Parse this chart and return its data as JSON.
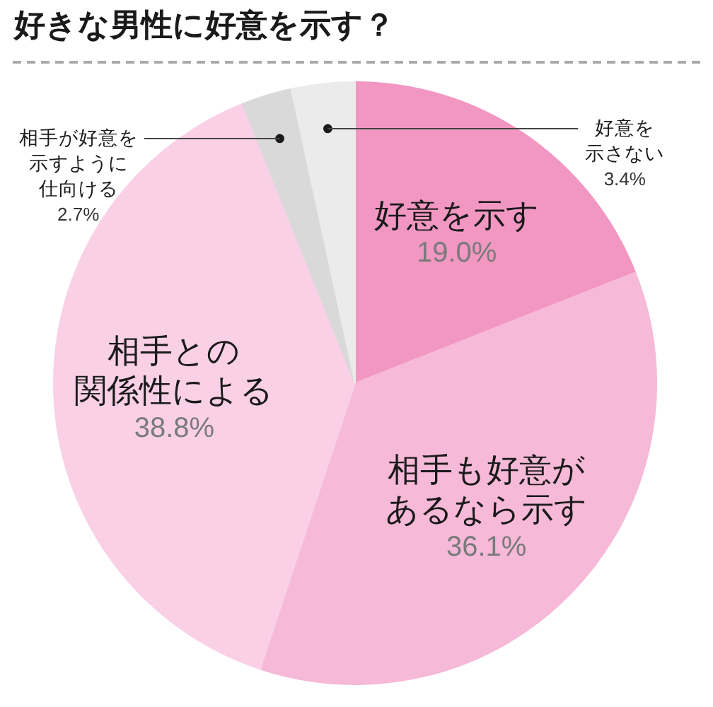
{
  "chart_data": {
    "type": "pie",
    "title": "好きな男性に好意を示す？",
    "categories": [
      "好意を示す",
      "相手も好意があるなら示す",
      "相手との関係性による",
      "相手が好意を示すように仕向ける",
      "好意を示さない"
    ],
    "values": [
      19.0,
      36.1,
      38.8,
      2.7,
      3.4
    ],
    "value_labels": [
      "19.0%",
      "36.1%",
      "38.8%",
      "2.7%",
      "3.4%"
    ],
    "colors": [
      "#f197c2",
      "#f6b9d8",
      "#f9d0e6",
      "#d9d9d9",
      "#ebebeb"
    ]
  }
}
